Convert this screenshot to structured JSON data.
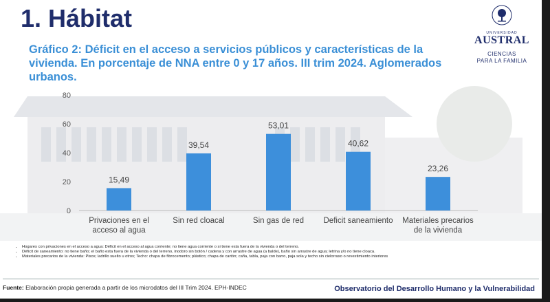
{
  "heading": "1.  Hábitat",
  "subtitle": "Gráfico 2: Déficit en el acceso a servicios públicos y características de la vivienda. En porcentaje de NNA entre 0 y 17 años. III trim 2024. Aglomerados urbanos.",
  "logo": {
    "university_small": "UNIVERSIDAD",
    "university_name": "AUSTRAL",
    "faculty_line1": "CIENCIAS",
    "faculty_line2": "PARA LA FAMILIA"
  },
  "chart_data": {
    "type": "bar",
    "categories": [
      "Privaciones en el acceso al agua",
      "Sin red cloacal",
      "Sin gas de red",
      "Deficit saneamiento",
      "Materiales precarios de la vivienda"
    ],
    "category_lines": [
      [
        "Privaciones en el",
        "acceso al agua"
      ],
      [
        "Sin red cloacal"
      ],
      [
        "Sin gas de red"
      ],
      [
        "Deficit saneamiento"
      ],
      [
        "Materiales precarios",
        "de la vivienda"
      ]
    ],
    "values": [
      15.49,
      39.54,
      53.01,
      40.62,
      23.26
    ],
    "data_labels": [
      "15,49",
      "39,54",
      "53,01",
      "40,62",
      "23,26"
    ],
    "ylim": [
      0,
      80
    ],
    "yticks": [
      0,
      20,
      40,
      60,
      80
    ],
    "bar_color": "#3d8fdb",
    "grid": false,
    "legend": "none"
  },
  "notes": [
    "Hogares con privaciones en el acceso a agua: Déficit en el acceso al agua corriente; no tiene agua corriente o si tiene esta fuera de la vivienda o del terreno.",
    "Déficit de saneamiento: no tiene baño; el baño esta fuera de la vivienda o del terreno,  inodoro sin botón / cadena y con arrastre de agua (a balde), baño sin arrastre de agua; letrina y/o no tiene cloaca.",
    "Materiales precarios de la vivienda: Pisos; ladrillo suelto u otros; Techo: chapa de fibrocemento; plástico; chapa de cartón; caña, tabla, paja con barro, paja sola y techo sin cielorraso o revestimiento interiores"
  ],
  "source_label": "Fuente:",
  "source_text": " Elaboración propia generada a partir de los microdatos del III Trim 2024. EPH-INDEC",
  "footer_right": "Observatorio del Desarrollo Humano y la Vulnerabilidad"
}
